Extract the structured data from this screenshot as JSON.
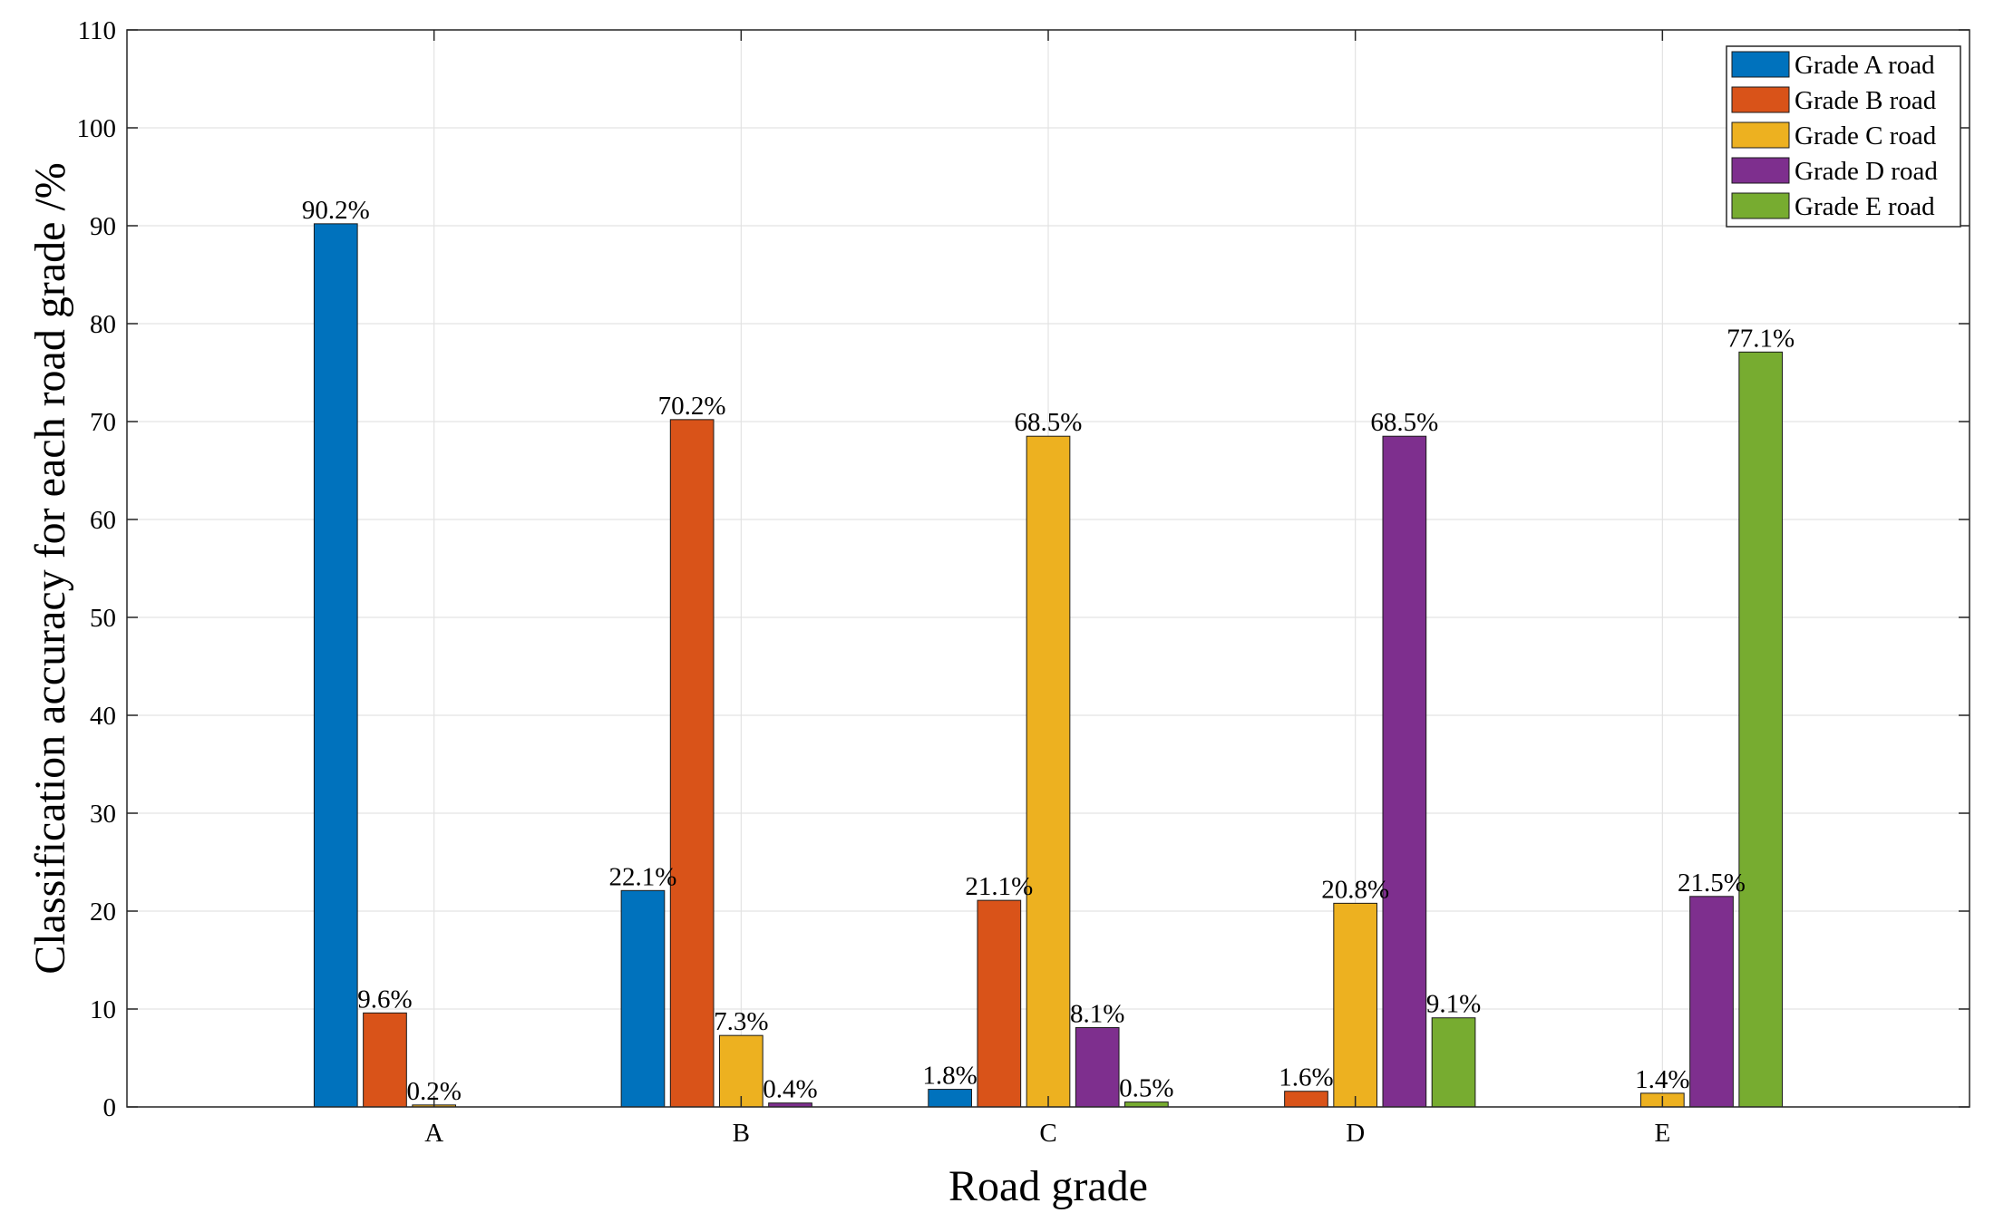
{
  "chart_data": {
    "type": "bar",
    "title": "",
    "xlabel": "Road grade",
    "ylabel": "Classification accuracy for each road grade /%",
    "ylim": [
      0,
      110
    ],
    "yticks": [
      0,
      10,
      20,
      30,
      40,
      50,
      60,
      70,
      80,
      90,
      100,
      110
    ],
    "xlim": [
      0,
      6
    ],
    "grid": true,
    "legend_position": "top-right",
    "categories": [
      "A",
      "B",
      "C",
      "D",
      "E"
    ],
    "series": [
      {
        "name": "Grade A road",
        "color": "#0072BD",
        "values": [
          90.2,
          22.1,
          1.8,
          0,
          0
        ],
        "labels": [
          "90.2%",
          "22.1%",
          "1.8%",
          "",
          ""
        ]
      },
      {
        "name": "Grade B road",
        "color": "#D95319",
        "values": [
          9.6,
          70.2,
          21.1,
          1.6,
          0
        ],
        "labels": [
          "9.6%",
          "70.2%",
          "21.1%",
          "1.6%",
          ""
        ]
      },
      {
        "name": "Grade C road",
        "color": "#EDB120",
        "values": [
          0.2,
          7.3,
          68.5,
          20.8,
          1.4
        ],
        "labels": [
          "0.2%",
          "7.3%",
          "68.5%",
          "20.8%",
          "1.4%"
        ]
      },
      {
        "name": "Grade D road",
        "color": "#7E2F8E",
        "values": [
          0,
          0.4,
          8.1,
          68.5,
          21.5
        ],
        "labels": [
          "",
          "0.4%",
          "8.1%",
          "68.5%",
          "21.5%"
        ]
      },
      {
        "name": "Grade E road",
        "color": "#77AC30",
        "values": [
          0,
          0,
          0.5,
          9.1,
          77.1
        ],
        "labels": [
          "",
          "",
          "0.5%",
          "9.1%",
          "77.1%"
        ]
      }
    ]
  }
}
